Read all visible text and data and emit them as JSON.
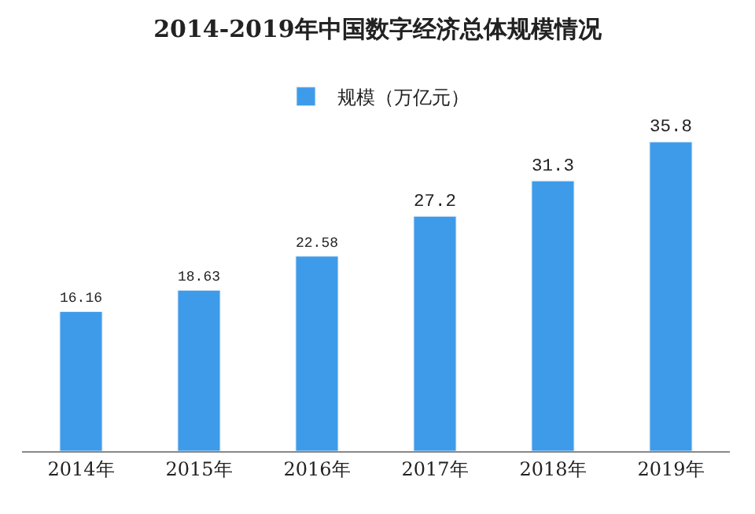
{
  "chart_data": {
    "type": "bar",
    "title": "2014-2019年中国数字经济总体规模情况",
    "categories": [
      "2014年",
      "2015年",
      "2016年",
      "2017年",
      "2018年",
      "2019年"
    ],
    "series": [
      {
        "name": "规模（万亿元）",
        "color": "#3d9bea",
        "values": [
          16.16,
          18.63,
          22.58,
          27.2,
          31.3,
          35.8
        ]
      }
    ],
    "data_labels": true,
    "legend": "top"
  }
}
